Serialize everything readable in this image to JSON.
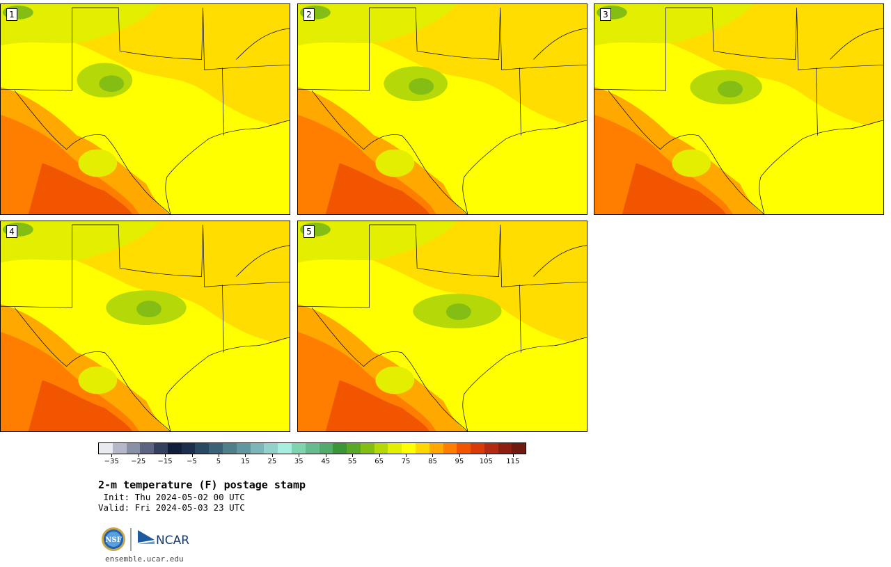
{
  "panels": [
    {
      "label": "1"
    },
    {
      "label": "2"
    },
    {
      "label": "3"
    },
    {
      "label": "4"
    },
    {
      "label": "5"
    }
  ],
  "colorbar": {
    "colors": [
      "#e8eaf0",
      "#b4b8c8",
      "#8a90a6",
      "#5c6482",
      "#33405e",
      "#101e3a",
      "#1c2e4c",
      "#294861",
      "#3a6276",
      "#4f808a",
      "#6198a0",
      "#7cb6b8",
      "#93d2cc",
      "#a8eedf",
      "#7fd4b0",
      "#66bc8e",
      "#52ab6a",
      "#3c9639",
      "#5aa828",
      "#84bd14",
      "#b4d808",
      "#e4ee00",
      "#ffff00",
      "#ffd700",
      "#ffa800",
      "#ff7e00",
      "#f25500",
      "#d83a08",
      "#b22a10",
      "#8e1e10",
      "#6e1a0e"
    ],
    "tick_labels": [
      "−35",
      "−25",
      "−15",
      "−5",
      "5",
      "15",
      "25",
      "35",
      "45",
      "55",
      "65",
      "75",
      "85",
      "95",
      "105",
      "115"
    ],
    "tick_values": [
      -35,
      -25,
      -15,
      -5,
      5,
      15,
      25,
      35,
      45,
      55,
      65,
      75,
      85,
      95,
      105,
      115
    ],
    "min": -40,
    "max": 120
  },
  "title": "2-m temperature (F) postage stamp",
  "init_line": " Init: Thu 2024-05-02 00 UTC",
  "valid_line": "Valid: Fri 2024-05-03 23 UTC",
  "logos": {
    "nsf": "NSF",
    "ncar": "NCAR"
  },
  "url": "ensemble.ucar.edu"
}
